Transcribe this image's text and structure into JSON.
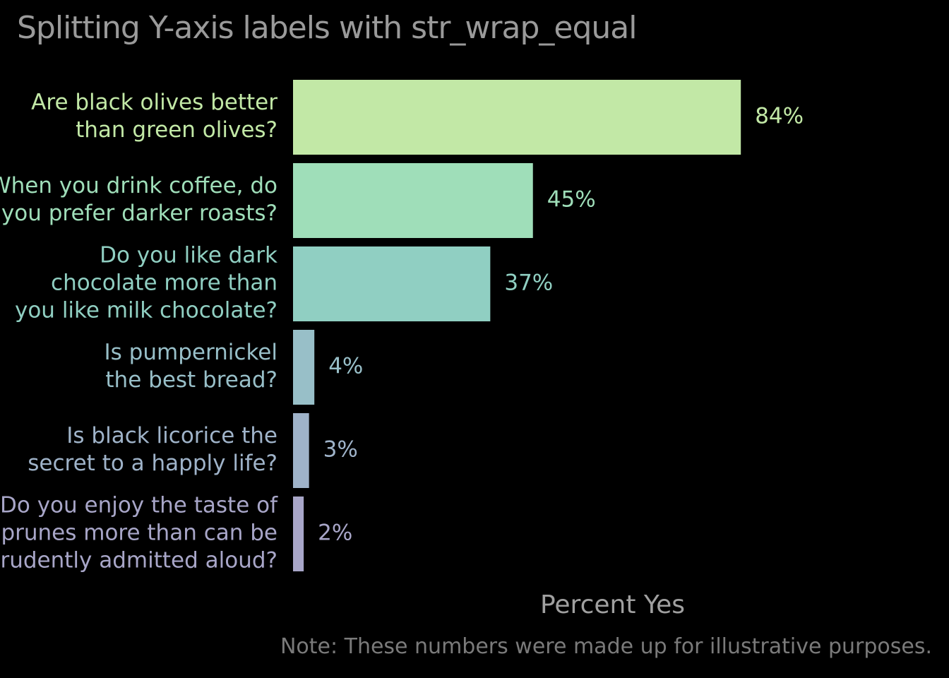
{
  "chart_data": {
    "type": "bar",
    "orientation": "horizontal",
    "title": "Splitting Y-axis labels with str_wrap_equal",
    "xlabel": "Percent Yes",
    "ylabel": "",
    "caption": "Note: These numbers were made up for illustrative purposes.",
    "categories": [
      [
        "Are black olives better",
        "than green olives?"
      ],
      [
        "When you drink coffee, do",
        "you prefer darker roasts?"
      ],
      [
        "Do you like dark",
        "chocolate more than",
        "you like milk chocolate?"
      ],
      [
        "Is pumpernickel",
        "the best bread?"
      ],
      [
        "Is black licorice the",
        "secret to a happly life?"
      ],
      [
        "Do you enjoy the taste of",
        "prunes more than can be",
        "prudently admitted aloud?"
      ]
    ],
    "values": [
      84,
      45,
      37,
      4,
      3,
      2
    ],
    "value_labels": [
      "84%",
      "45%",
      "37%",
      "4%",
      "3%",
      "2%"
    ],
    "colors": [
      "#c2e8a6",
      "#9fdeb9",
      "#90cfc2",
      "#98bfc8",
      "#9fb3c9",
      "#a8a6c8"
    ],
    "xlim": [
      0,
      100
    ],
    "grid": false,
    "legend": "none",
    "background": "#000000"
  }
}
